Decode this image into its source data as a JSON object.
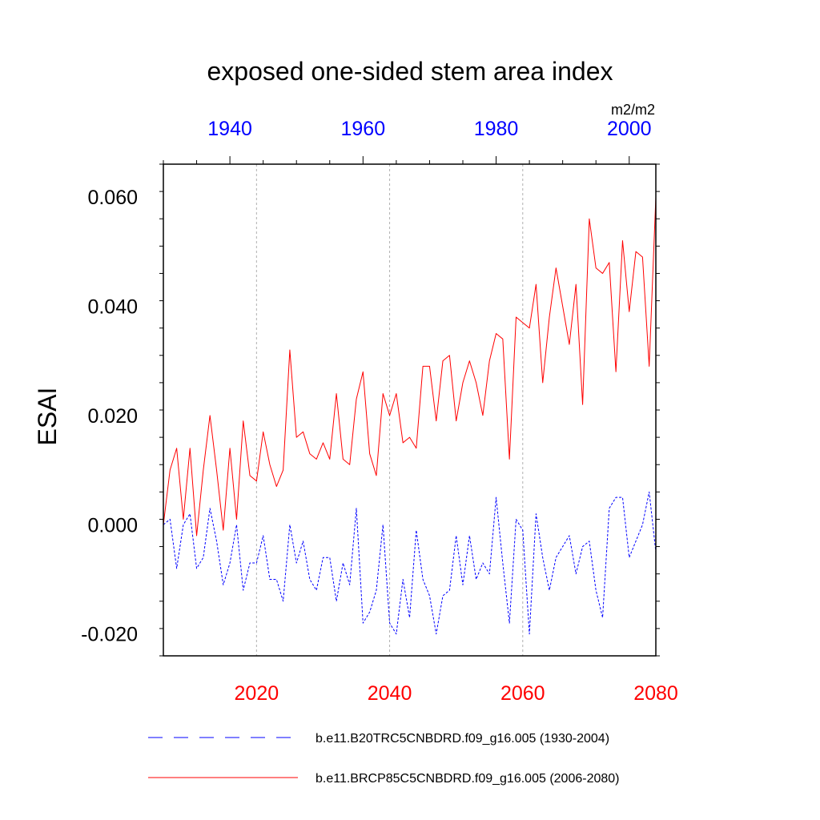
{
  "chart_data": {
    "type": "line",
    "title": "exposed one-sided stem area index",
    "units": "m2/m2",
    "ylabel": "ESAI",
    "ylim": [
      -0.024,
      0.066
    ],
    "yticks": [
      -0.02,
      0.0,
      0.02,
      0.04,
      0.06
    ],
    "ytick_labels": [
      "-0.020",
      "0.000",
      "0.020",
      "0.040",
      "0.060"
    ],
    "x_bottom": {
      "range": [
        2006,
        2080
      ],
      "ticks": [
        2020,
        2040,
        2060,
        2080
      ],
      "tick_labels": [
        "2020",
        "2040",
        "2060",
        "2080"
      ],
      "color": "#ff0000"
    },
    "x_top": {
      "range": [
        1930,
        2004
      ],
      "ticks": [
        1940,
        1960,
        1980,
        2000
      ],
      "tick_labels": [
        "1940",
        "1960",
        "1980",
        "2000"
      ],
      "color": "#0000ff"
    },
    "gridlines_x": [
      2020,
      2040,
      2060
    ],
    "series": [
      {
        "name": "b.e11.B20TRC5CNBDRD.f09_g16.005 (1930-2004)",
        "color": "#0000ff",
        "style": "dashed",
        "years": "1930-2004",
        "values": [
          0.0,
          0.001,
          -0.008,
          0.0,
          0.002,
          -0.008,
          -0.006,
          0.003,
          -0.003,
          -0.011,
          -0.007,
          0.0,
          -0.012,
          -0.007,
          -0.007,
          -0.002,
          -0.01,
          -0.01,
          -0.014,
          0.0,
          -0.007,
          -0.003,
          -0.01,
          -0.012,
          -0.006,
          -0.006,
          -0.014,
          -0.007,
          -0.011,
          0.003,
          -0.018,
          -0.016,
          -0.012,
          0.0,
          -0.018,
          -0.02,
          -0.01,
          -0.017,
          -0.001,
          -0.01,
          -0.013,
          -0.02,
          -0.013,
          -0.012,
          -0.002,
          -0.011,
          -0.002,
          -0.01,
          -0.007,
          -0.009,
          0.005,
          -0.007,
          -0.018,
          0.001,
          -0.001,
          -0.02,
          0.002,
          -0.006,
          -0.012,
          -0.006,
          -0.004,
          -0.002,
          -0.009,
          -0.004,
          -0.003,
          -0.012,
          -0.017,
          0.003,
          0.005,
          0.005,
          -0.006,
          -0.003,
          0.0,
          0.006,
          -0.005
        ]
      },
      {
        "name": "b.e11.BRCP85C5CNBDRD.f09_g16.005 (2006-2080)",
        "color": "#ff0000",
        "style": "solid",
        "years": "2006-2080",
        "values": [
          0.0,
          0.01,
          0.014,
          0.001,
          0.014,
          -0.002,
          0.01,
          0.02,
          0.01,
          -0.001,
          0.014,
          0.001,
          0.019,
          0.009,
          0.008,
          0.017,
          0.011,
          0.007,
          0.01,
          0.032,
          0.016,
          0.017,
          0.013,
          0.012,
          0.015,
          0.012,
          0.024,
          0.012,
          0.011,
          0.023,
          0.028,
          0.013,
          0.009,
          0.024,
          0.02,
          0.024,
          0.015,
          0.016,
          0.014,
          0.029,
          0.029,
          0.019,
          0.03,
          0.031,
          0.019,
          0.026,
          0.03,
          0.026,
          0.02,
          0.03,
          0.035,
          0.034,
          0.012,
          0.038,
          0.037,
          0.036,
          0.044,
          0.026,
          0.038,
          0.047,
          0.04,
          0.033,
          0.044,
          0.022,
          0.056,
          0.047,
          0.046,
          0.048,
          0.028,
          0.052,
          0.039,
          0.05,
          0.049,
          0.029,
          0.06
        ]
      }
    ],
    "legend_position": "bottom"
  }
}
